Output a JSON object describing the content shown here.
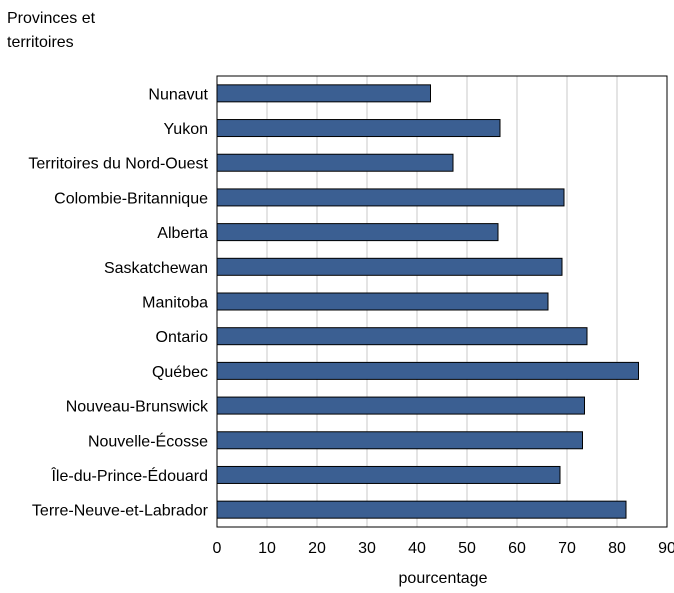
{
  "chart_data": {
    "type": "bar",
    "orientation": "horizontal",
    "y_axis_title": "Provinces et territoires",
    "y_axis_title_lines": [
      "Provinces et",
      "territoires"
    ],
    "xlabel": "pourcentage",
    "categories": [
      "Nunavut",
      "Yukon",
      "Territoires du Nord-Ouest",
      "Colombie-Britannique",
      "Alberta",
      "Saskatchewan",
      "Manitoba",
      "Ontario",
      "Québec",
      "Nouveau-Brunswick",
      "Nouvelle-Écosse",
      "Île-du-Prince-Édouard",
      "Terre-Neuve-et-Labrador"
    ],
    "values": [
      42.7,
      56.6,
      47.2,
      69.4,
      56.2,
      69.0,
      66.2,
      74.0,
      84.3,
      73.5,
      73.1,
      68.6,
      81.8
    ],
    "xlim": [
      0,
      90
    ],
    "xticks": [
      0,
      10,
      20,
      30,
      40,
      50,
      60,
      70,
      80,
      90
    ],
    "grid": "vertical",
    "bar_color": "#3b5f92",
    "grid_color": "#c8c8c8"
  }
}
